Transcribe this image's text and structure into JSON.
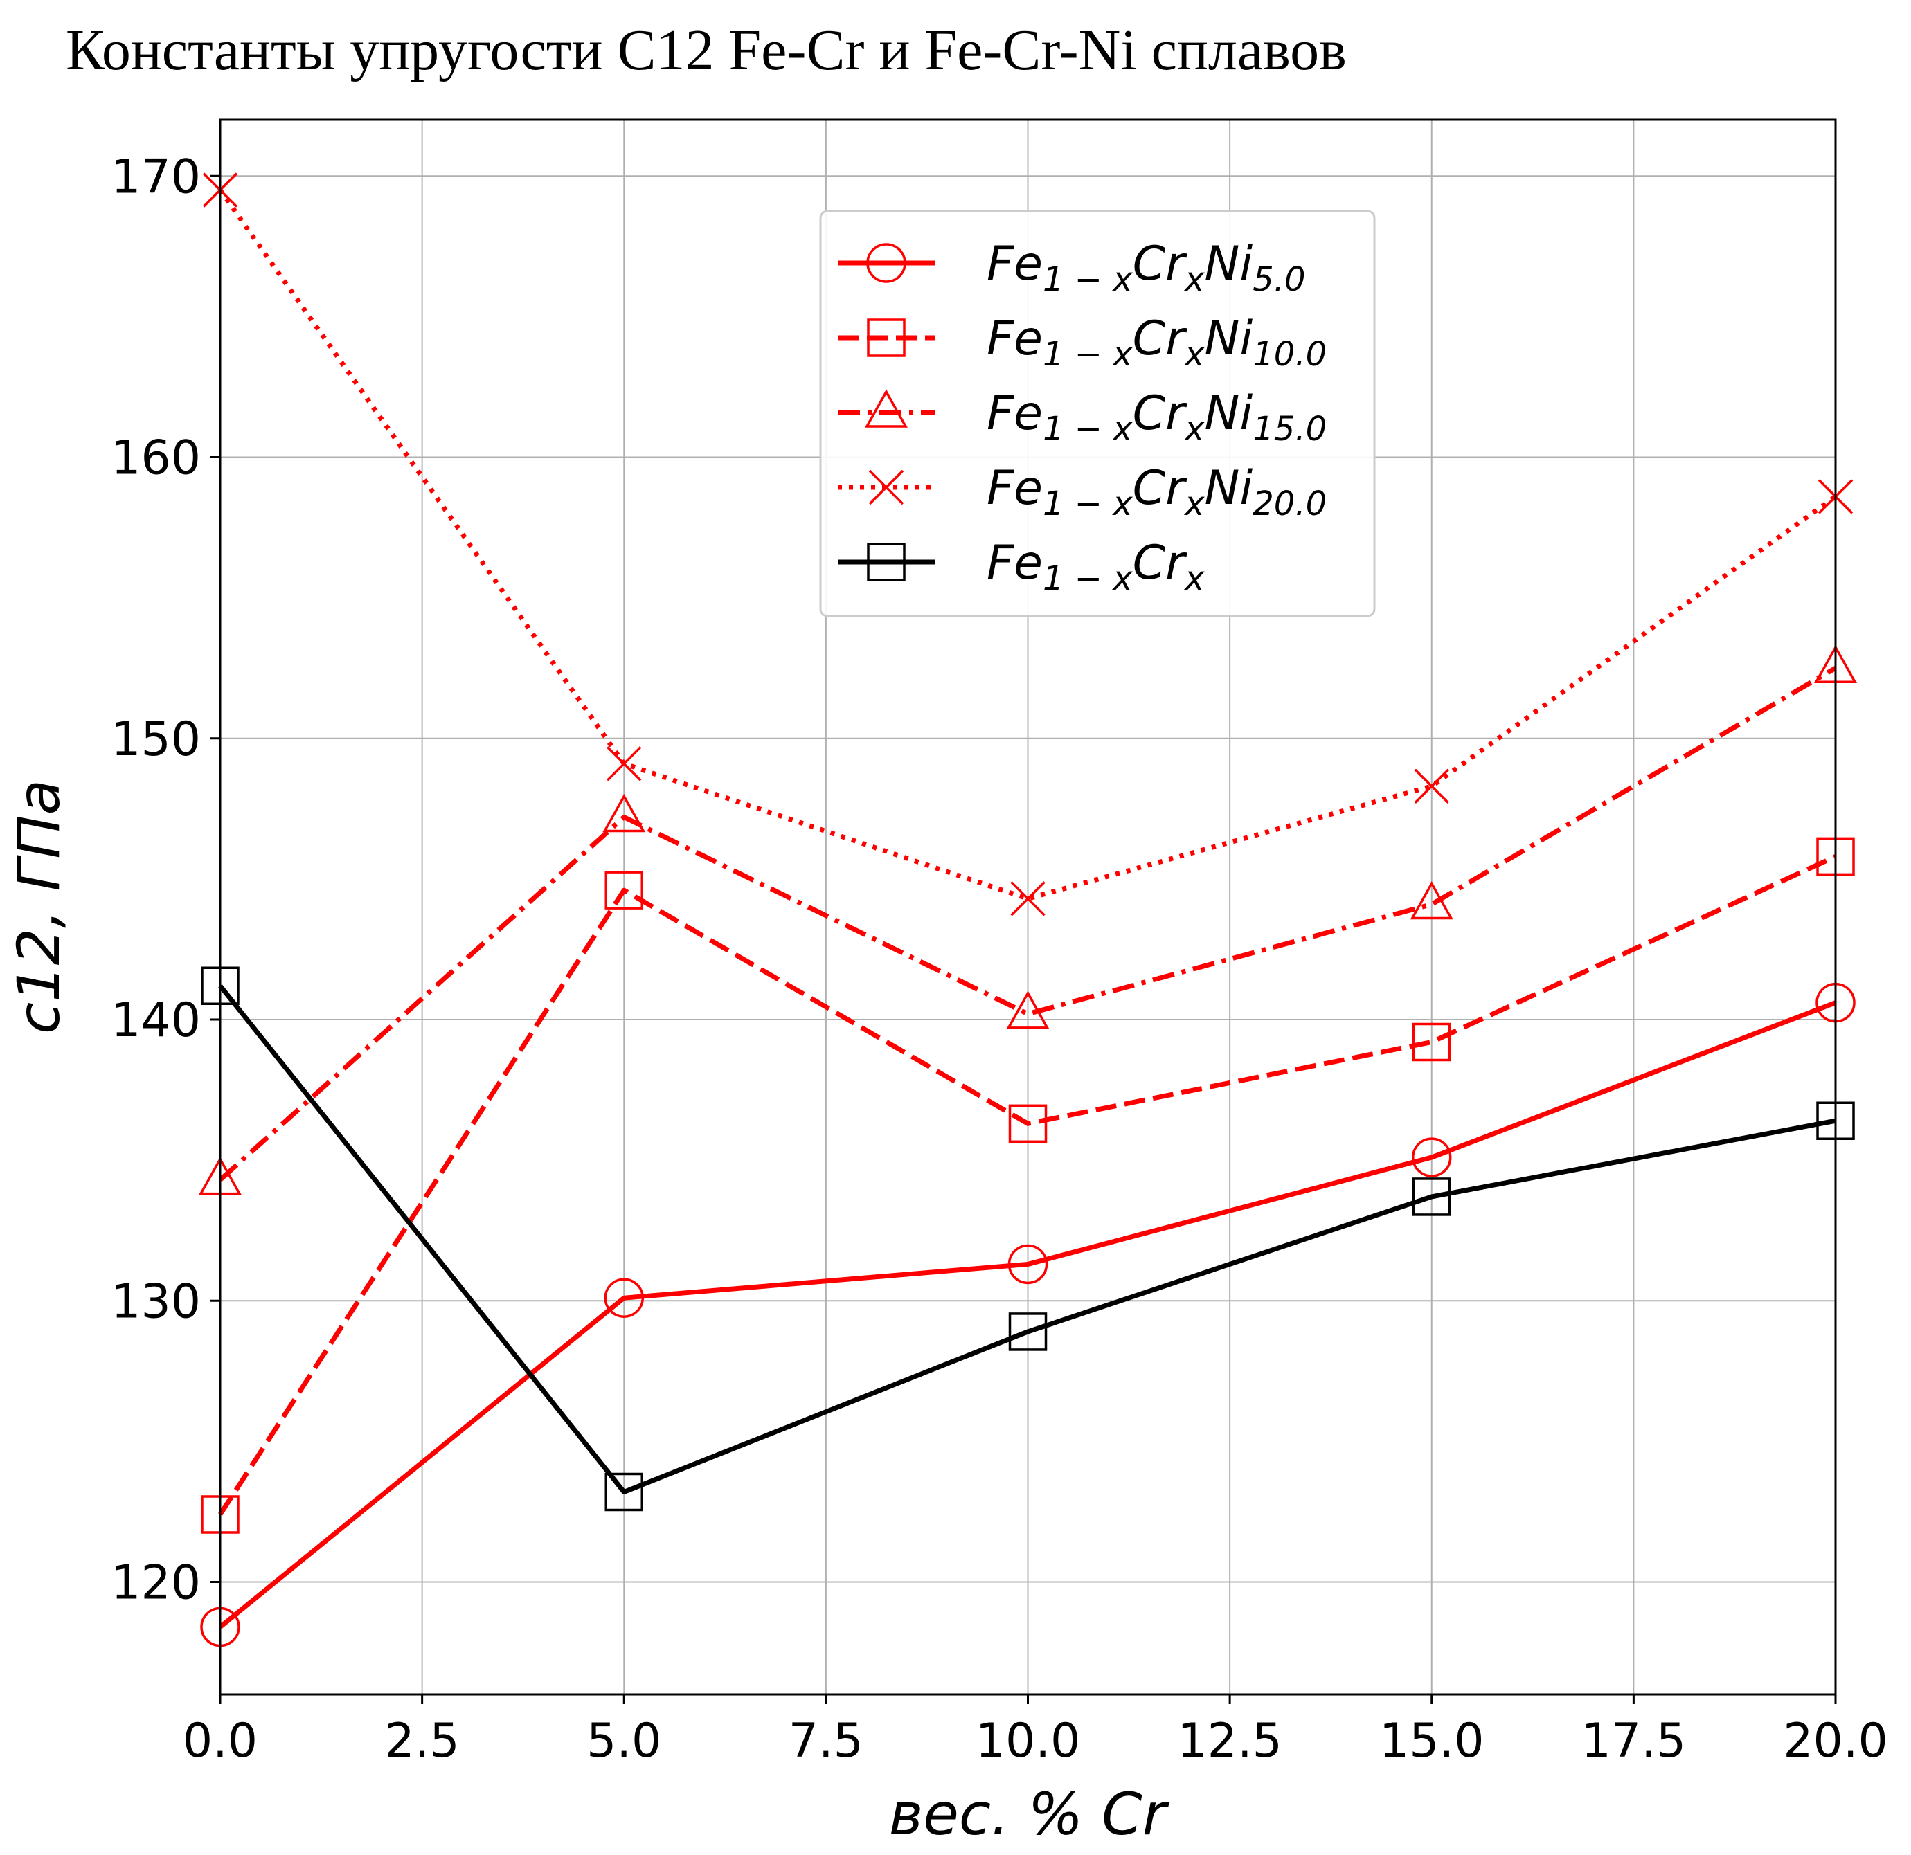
{
  "chart_data": {
    "type": "line",
    "title": "Константы упругости С12 Fe-Cr и Fe-Cr-Ni сплавов",
    "xlabel": "вес. % Cr",
    "ylabel": "c12, ГПа",
    "xlim": [
      0,
      20
    ],
    "ylim": [
      116,
      172
    ],
    "x_ticks": [
      "0.0",
      "2.5",
      "5.0",
      "7.5",
      "10.0",
      "12.5",
      "15.0",
      "17.5",
      "20.0"
    ],
    "y_ticks": [
      "120",
      "130",
      "140",
      "150",
      "160",
      "170"
    ],
    "x_tick_values": [
      0,
      2.5,
      5,
      7.5,
      10,
      12.5,
      15,
      17.5,
      20
    ],
    "y_tick_values": [
      120,
      130,
      140,
      150,
      160,
      170
    ],
    "grid": true,
    "legend_position": "top-center",
    "x": [
      0,
      5,
      10,
      15,
      20
    ],
    "series": [
      {
        "name": "Fe1−xCrxNi5.0",
        "label_main": "Fe",
        "sub1": "1 − x",
        "mid": "Cr",
        "sub2": "x",
        "tail": "Ni",
        "sub3": "5.0",
        "values": [
          118.4,
          130.1,
          131.3,
          135.1,
          140.6
        ],
        "color": "#ff0000",
        "dash": "solid",
        "marker": "circle"
      },
      {
        "name": "Fe1−xCrxNi10.0",
        "label_main": "Fe",
        "sub1": "1 − x",
        "mid": "Cr",
        "sub2": "x",
        "tail": "Ni",
        "sub3": "10.0",
        "values": [
          122.4,
          144.6,
          136.3,
          139.2,
          145.8
        ],
        "color": "#ff0000",
        "dash": "dashed",
        "marker": "square"
      },
      {
        "name": "Fe1−xCrxNi15.0",
        "label_main": "Fe",
        "sub1": "1 − x",
        "mid": "Cr",
        "sub2": "x",
        "tail": "Ni",
        "sub3": "15.0",
        "values": [
          134.3,
          147.2,
          140.2,
          144.1,
          152.5
        ],
        "color": "#ff0000",
        "dash": "dashdot",
        "marker": "triangle"
      },
      {
        "name": "Fe1−xCrxNi20.0",
        "label_main": "Fe",
        "sub1": "1 − x",
        "mid": "Cr",
        "sub2": "x",
        "tail": "Ni",
        "sub3": "20.0",
        "values": [
          169.5,
          149.1,
          144.3,
          148.3,
          158.6
        ],
        "color": "#ff0000",
        "dash": "dotted",
        "marker": "x"
      },
      {
        "name": "Fe1−xCrx",
        "label_main": "Fe",
        "sub1": "1 − x",
        "mid": "Cr",
        "sub2": "x",
        "tail": "",
        "sub3": "",
        "values": [
          141.2,
          123.2,
          128.9,
          133.7,
          136.4
        ],
        "color": "#000000",
        "dash": "solid",
        "marker": "square"
      }
    ]
  }
}
